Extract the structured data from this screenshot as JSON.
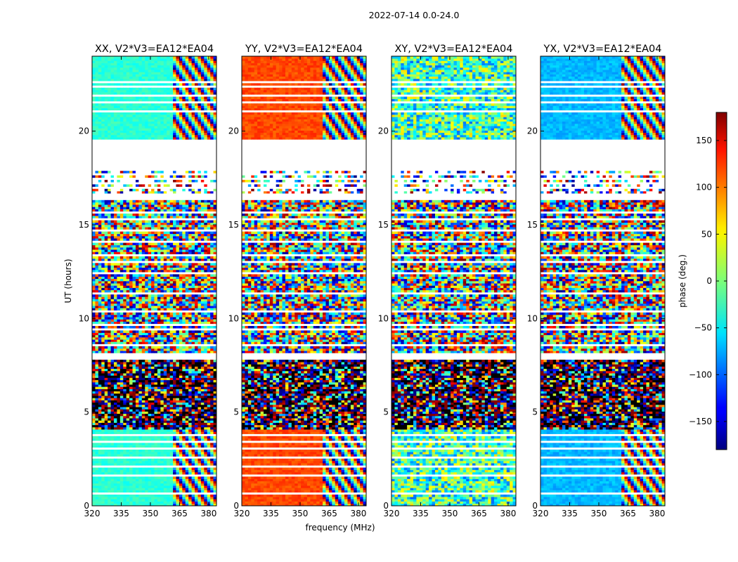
{
  "figure_title": "2022-07-14 0.0-24.0",
  "chart_data": {
    "type": "heatmap",
    "title": "2022-07-14 0.0-24.0",
    "xlabel": "frequency (MHz)",
    "ylabel": "UT (hours)",
    "xlim": [
      320,
      384
    ],
    "ylim": [
      0,
      24
    ],
    "x_ticks": [
      320,
      335,
      350,
      365,
      380
    ],
    "y_ticks": [
      0,
      5,
      10,
      15,
      20
    ],
    "panels": [
      {
        "title": "XX, V2*V3=EA12*EA04",
        "polarization": "XX",
        "approx_phase_deg": {
          "low_freq_good_time": -30,
          "high_freq": "wrapping stripes"
        }
      },
      {
        "title": "YY, V2*V3=EA12*EA04",
        "polarization": "YY",
        "approx_phase_deg": {
          "low_freq_good_time": 110,
          "high_freq": "wrapping stripes"
        }
      },
      {
        "title": "XY, V2*V3=EA12*EA04",
        "polarization": "XY",
        "approx_phase_deg": {
          "low_freq_good_time": "noisy",
          "high_freq": "noisy"
        }
      },
      {
        "title": "YX, V2*V3=EA12*EA04",
        "polarization": "YX",
        "approx_phase_deg": {
          "low_freq_good_time": -70,
          "high_freq": "noisy stripes"
        }
      }
    ],
    "time_segments": [
      {
        "from": 0.0,
        "to": 4.0,
        "quality": "coherent"
      },
      {
        "from": 4.0,
        "to": 7.7,
        "quality": "very noisy, dense flags"
      },
      {
        "from": 8.0,
        "to": 16.3,
        "quality": "noisy"
      },
      {
        "from": 16.5,
        "to": 17.8,
        "quality": "sparse, heavily flagged"
      },
      {
        "from": 17.8,
        "to": 19.5,
        "quality": "flagged (no data)"
      },
      {
        "from": 19.5,
        "to": 24.0,
        "quality": "coherent with flagged rows"
      }
    ],
    "colorbar": {
      "label": "phase (deg.)",
      "range": [
        -180,
        180
      ],
      "ticks": [
        150,
        100,
        50,
        0,
        -50,
        -100,
        -150
      ],
      "colormap": "jet"
    }
  }
}
